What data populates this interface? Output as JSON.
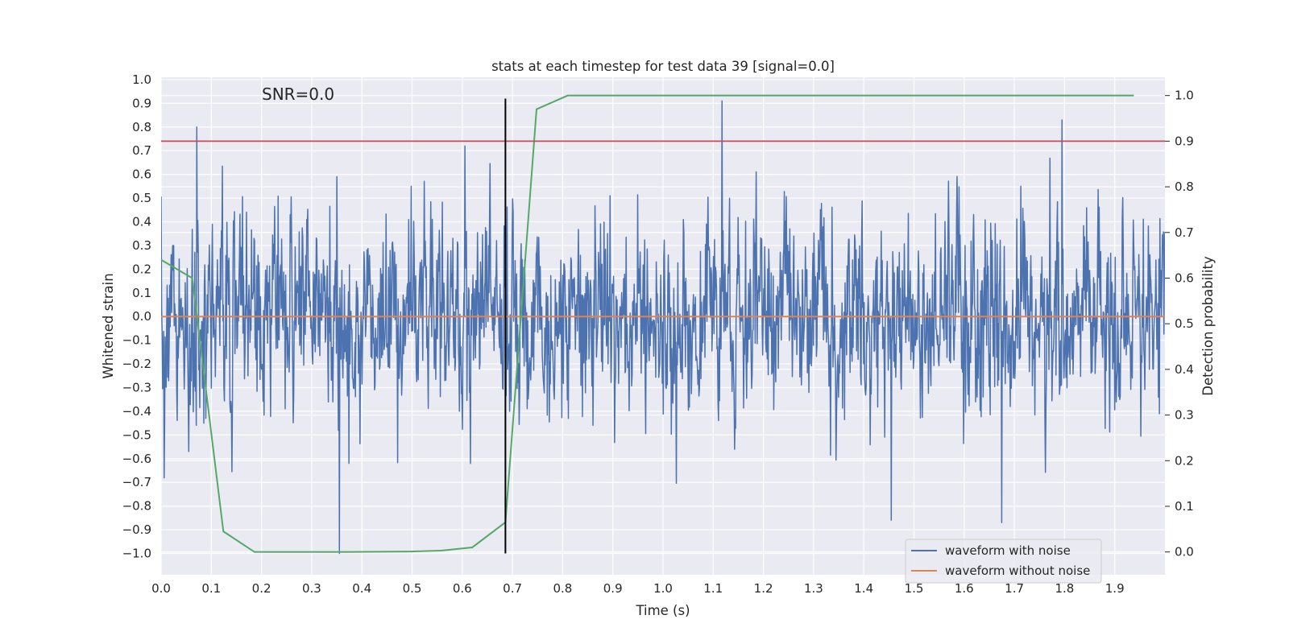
{
  "chart_data": {
    "type": "line",
    "title": "stats at each timestep for test data 39 [signal=0.0]",
    "xlabel": "Time (s)",
    "ylabel": "Whitened strain",
    "y2label": "Detection probability",
    "xlim": [
      0.0,
      2.0
    ],
    "ylim": [
      -1.09,
      1.01
    ],
    "y2lim": [
      -0.05,
      1.04
    ],
    "x_ticks": [
      "0.0",
      "0.1",
      "0.2",
      "0.3",
      "0.4",
      "0.5",
      "0.6",
      "0.7",
      "0.8",
      "0.9",
      "1.0",
      "1.1",
      "1.2",
      "1.3",
      "1.4",
      "1.5",
      "1.6",
      "1.7",
      "1.8",
      "1.9"
    ],
    "y_ticks": [
      "1.0",
      "0.9",
      "0.8",
      "0.7",
      "0.6",
      "0.5",
      "0.4",
      "0.3",
      "0.2",
      "0.1",
      "0.0",
      "−0.1",
      "−0.2",
      "−0.3",
      "−0.4",
      "−0.5",
      "−0.6",
      "−0.7",
      "−0.8",
      "−0.9",
      "−1.0"
    ],
    "y2_ticks": [
      "1.0",
      "0.9",
      "0.8",
      "0.7",
      "0.6",
      "0.5",
      "0.4",
      "0.3",
      "0.2",
      "0.1",
      "0.0"
    ],
    "annotation": "SNR=0.0",
    "threshold": {
      "axis": "right",
      "value": 0.9,
      "color": "#c44e52"
    },
    "vertical_marker": {
      "x": 0.686,
      "y_from": -1.0,
      "y_to": 0.92,
      "color": "#000000"
    },
    "series": [
      {
        "name": "waveform with noise",
        "axis": "left",
        "color": "#4c72b0",
        "kind": "noise",
        "sample_count": 2000,
        "approx_range": [
          -1.0,
          0.92
        ],
        "peaks": [
          {
            "x": 0.071,
            "y": 0.8
          },
          {
            "x": 0.355,
            "y": -1.0
          },
          {
            "x": 0.605,
            "y": 0.72
          },
          {
            "x": 1.118,
            "y": 0.91
          },
          {
            "x": 1.455,
            "y": -0.86
          },
          {
            "x": 1.675,
            "y": -0.87
          },
          {
            "x": 1.795,
            "y": 0.83
          }
        ]
      },
      {
        "name": "waveform without noise",
        "axis": "left",
        "color": "#dd8452",
        "x": [
          0.0,
          2.0
        ],
        "y": [
          0.0,
          0.0
        ]
      },
      {
        "name": "detection probability",
        "axis": "right",
        "color": "#55a868",
        "in_legend": false,
        "x": [
          0.0,
          0.062,
          0.124,
          0.186,
          0.248,
          0.31,
          0.372,
          0.434,
          0.496,
          0.558,
          0.62,
          0.686,
          0.748,
          0.81,
          0.872,
          0.934,
          0.996,
          1.058,
          1.12,
          1.182,
          1.244,
          1.306,
          1.368,
          1.43,
          1.492,
          1.554,
          1.616,
          1.678,
          1.74,
          1.802,
          1.864,
          1.938
        ],
        "y": [
          0.64,
          0.6,
          0.045,
          0.0,
          0.0,
          0.0,
          0.0,
          0.0005,
          0.001,
          0.003,
          0.01,
          0.065,
          0.97,
          1.0,
          1.0,
          1.0,
          1.0,
          1.0,
          1.0,
          1.0,
          1.0,
          1.0,
          1.0,
          1.0,
          1.0,
          1.0,
          1.0,
          1.0,
          1.0,
          1.0,
          1.0,
          1.0
        ]
      }
    ],
    "legend": {
      "position": "lower-right",
      "entries": [
        {
          "label": "waveform with noise",
          "color": "#4c72b0"
        },
        {
          "label": "waveform without noise",
          "color": "#dd8452"
        }
      ]
    }
  }
}
